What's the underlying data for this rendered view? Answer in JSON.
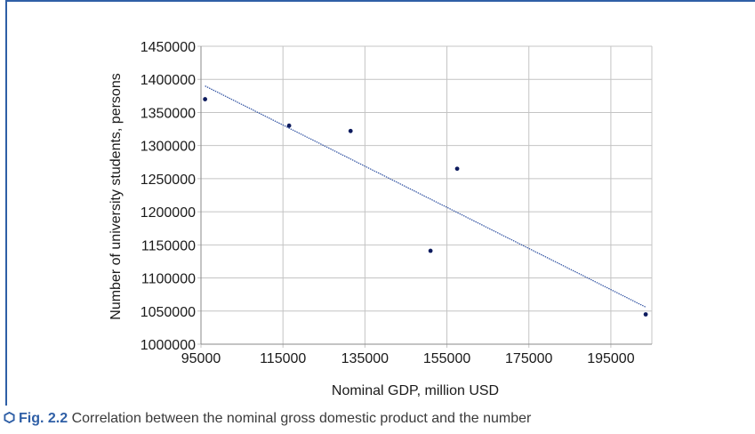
{
  "chart_data": {
    "type": "scatter",
    "title": "",
    "xlabel": "Nominal GDP, million USD",
    "ylabel": "Number of university students, persons",
    "xlim": [
      95000,
      205000
    ],
    "ylim": [
      1000000,
      1450000
    ],
    "x_ticks": [
      "95000",
      "115000",
      "135000",
      "155000",
      "175000",
      "195000"
    ],
    "y_ticks": [
      "1000000",
      "1050000",
      "1100000",
      "1150000",
      "1200000",
      "1250000",
      "1300000",
      "1350000",
      "1400000",
      "1450000"
    ],
    "grid": true,
    "points": [
      {
        "x": 96000,
        "y": 1370000
      },
      {
        "x": 116500,
        "y": 1330000
      },
      {
        "x": 131500,
        "y": 1322000
      },
      {
        "x": 151000,
        "y": 1141000
      },
      {
        "x": 157500,
        "y": 1265000
      },
      {
        "x": 203500,
        "y": 1045000
      }
    ],
    "trendline": {
      "x": [
        96000,
        203500
      ],
      "y": [
        1390000,
        1056000
      ]
    },
    "colors": {
      "points": "#0d1b5e",
      "trendline": "#2d4fa0",
      "grid": "#c4c4c4"
    }
  },
  "caption": {
    "label": "Fig. 2.2",
    "text": "Correlation between the nominal gross domestic product and the number"
  },
  "colors": {
    "frame": "#2f5fa6"
  }
}
